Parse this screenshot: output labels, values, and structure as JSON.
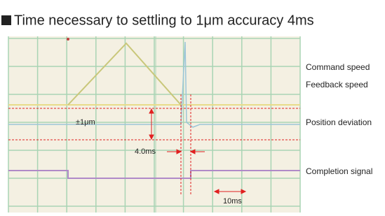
{
  "title": "Time necessary to settling to 1μm accuracy 4ms",
  "scope": {
    "deviation_band": "±1μm",
    "settling_time": "4.0ms",
    "time_scale": "10ms"
  },
  "legend": {
    "command_speed": "Command speed",
    "feedback_speed": "Feedback speed",
    "position_deviation": "Position deviation",
    "completion_signal": "Completion signal"
  }
}
